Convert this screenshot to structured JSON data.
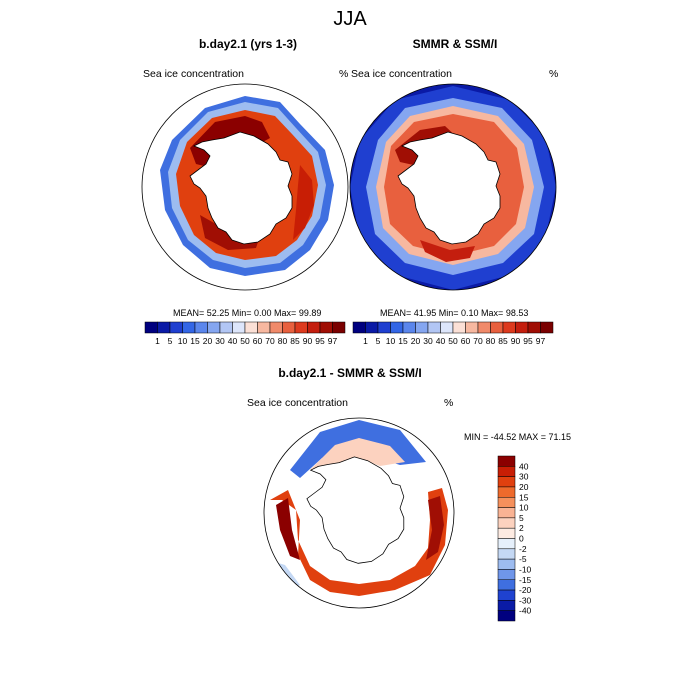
{
  "figure": {
    "season": "JJA",
    "panels": [
      {
        "title": "b.day2.1 (yrs 1-3)",
        "variable": "Sea ice concentration",
        "units": "%",
        "stats": "MEAN=  52.25  Min=   0.00  Max=  99.89"
      },
      {
        "title": "SMMR & SSM/I",
        "variable": "Sea ice concentration",
        "units": "%",
        "stats": "MEAN=  41.95  Min=   0.10  Max=  98.53"
      },
      {
        "title": "b.day2.1 - SMMR & SSM/I",
        "variable": "Sea ice concentration",
        "units": "%",
        "stats": "MIN = -44.52 MAX =  71.15"
      }
    ]
  },
  "chart_data": [
    {
      "type": "heatmap",
      "title": "b.day2.1 (yrs 1-3)",
      "subtitle": "Sea ice concentration (%)",
      "projection": "south polar stereographic",
      "stats": {
        "mean": 52.25,
        "min": 0.0,
        "max": 99.89
      },
      "colorbar": {
        "orientation": "horizontal",
        "levels": [
          "1",
          "5",
          "10",
          "15",
          "20",
          "30",
          "40",
          "50",
          "60",
          "70",
          "80",
          "85",
          "90",
          "95",
          "97"
        ],
        "colors": [
          "#00007f",
          "#0a1aa6",
          "#1f3fd0",
          "#3366e6",
          "#5b86ec",
          "#85a6f0",
          "#b2c6f4",
          "#dde6fb",
          "#fbe0d6",
          "#f7b8a0",
          "#f08a6a",
          "#e8603e",
          "#dd3a1e",
          "#c41e0e",
          "#a00e04",
          "#7a0000"
        ]
      }
    },
    {
      "type": "heatmap",
      "title": "SMMR & SSM/I",
      "subtitle": "Sea ice concentration (%)",
      "projection": "south polar stereographic",
      "stats": {
        "mean": 41.95,
        "min": 0.1,
        "max": 98.53
      },
      "colorbar": {
        "orientation": "horizontal",
        "levels": [
          "1",
          "5",
          "10",
          "15",
          "20",
          "30",
          "40",
          "50",
          "60",
          "70",
          "80",
          "85",
          "90",
          "95",
          "97"
        ],
        "colors": [
          "#00007f",
          "#0a1aa6",
          "#1f3fd0",
          "#3366e6",
          "#5b86ec",
          "#85a6f0",
          "#b2c6f4",
          "#dde6fb",
          "#fbe0d6",
          "#f7b8a0",
          "#f08a6a",
          "#e8603e",
          "#dd3a1e",
          "#c41e0e",
          "#a00e04",
          "#7a0000"
        ]
      }
    },
    {
      "type": "heatmap",
      "title": "b.day2.1 - SMMR & SSM/I",
      "subtitle": "Sea ice concentration (%)",
      "projection": "south polar stereographic",
      "stats": {
        "min": -44.52,
        "max": 71.15
      },
      "colorbar": {
        "orientation": "vertical",
        "levels": [
          "40",
          "30",
          "20",
          "15",
          "10",
          "5",
          "2",
          "0",
          "-2",
          "-5",
          "-10",
          "-15",
          "-20",
          "-30",
          "-40"
        ],
        "colors": [
          "#8b0000",
          "#c81e05",
          "#e0400f",
          "#ee6a2c",
          "#f5905c",
          "#f9b394",
          "#fcd2bf",
          "#fdebe2",
          "#e6f0fb",
          "#c4d8f4",
          "#9dbcf0",
          "#6f96ea",
          "#3f6fe0",
          "#1f42d0",
          "#0a1ba6",
          "#00007f"
        ]
      }
    }
  ]
}
